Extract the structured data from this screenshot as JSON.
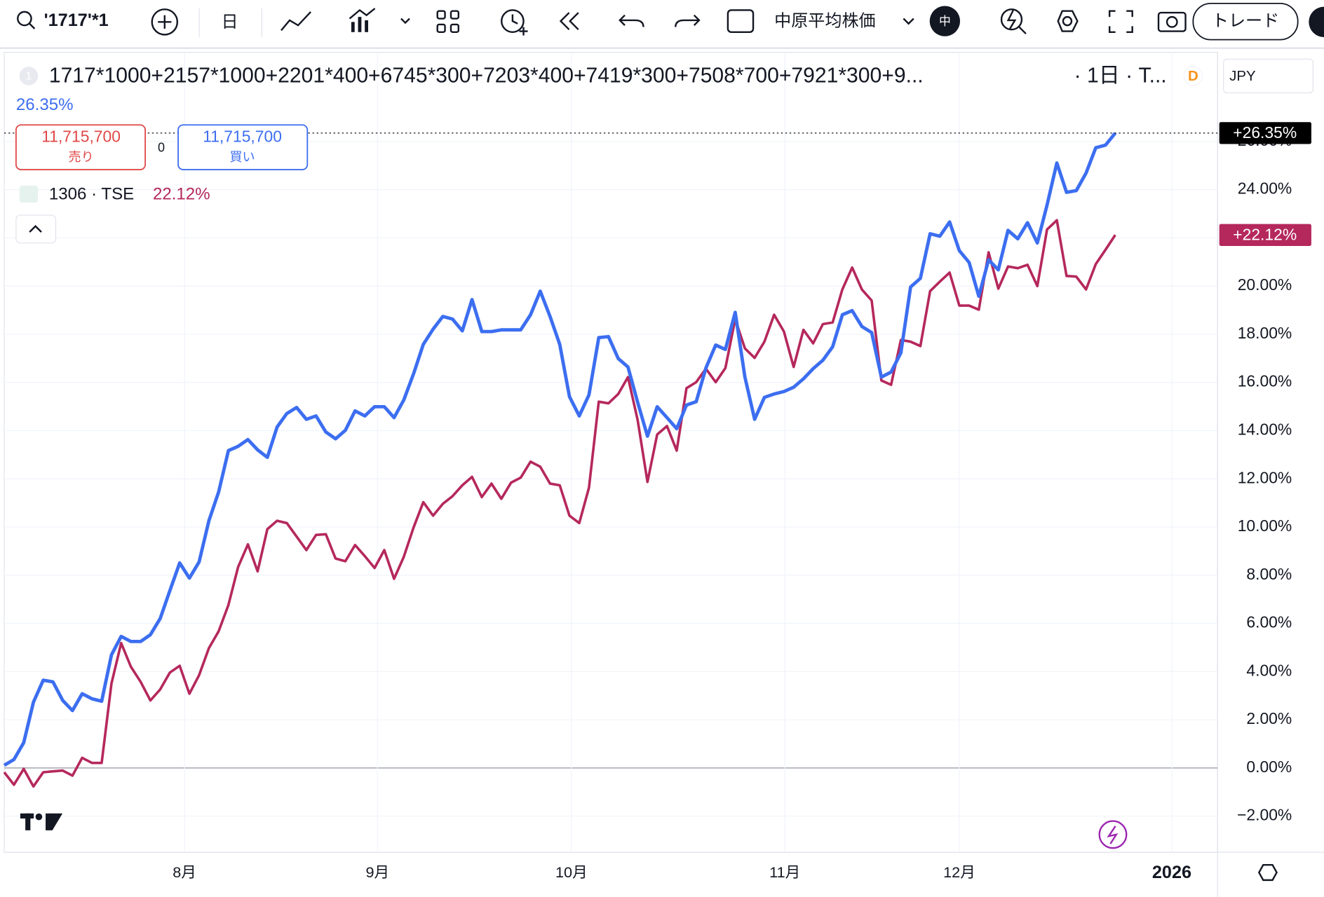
{
  "toolbar": {
    "symbol": "'1717'*1",
    "interval": "日",
    "compare": "中原平均株価",
    "badge": "中",
    "trade": "トレード"
  },
  "order_panel": {
    "sell_price": "11,715,700",
    "sell": "売り",
    "spread": "0",
    "buy_price": "11,715,700",
    "buy": "買い"
  },
  "legend_index": "1",
  "title_suffix": "· 1日 · T...",
  "source_icon": "D",
  "currency": "JPY",
  "chart_data": {
    "type": "line",
    "xlim": [
      0,
      124.5
    ],
    "xticks": [
      {
        "value": 18.5,
        "label": "8月"
      },
      {
        "value": 38.3,
        "label": "9月"
      },
      {
        "value": 58.2,
        "label": "10月"
      },
      {
        "value": 80.1,
        "label": "11月"
      },
      {
        "value": 98.0,
        "label": "12月"
      },
      {
        "value": 119.8,
        "label": "2026"
      }
    ],
    "ylim": [
      -3.5,
      29.7
    ],
    "yticks": [
      {
        "value": -2,
        "label": "−2.00%"
      },
      {
        "value": 0,
        "label": "0.00%"
      },
      {
        "value": 2,
        "label": "2.00%"
      },
      {
        "value": 4,
        "label": "4.00%"
      },
      {
        "value": 6,
        "label": "6.00%"
      },
      {
        "value": 8,
        "label": "8.00%"
      },
      {
        "value": 10,
        "label": "10.00%"
      },
      {
        "value": 12,
        "label": "12.00%"
      },
      {
        "value": 14,
        "label": "14.00%"
      },
      {
        "value": 16,
        "label": "16.00%"
      },
      {
        "value": 18,
        "label": "18.00%"
      },
      {
        "value": 20,
        "label": "20.00%"
      },
      {
        "value": 22,
        "label": "22.00%"
      },
      {
        "value": 24,
        "label": "24.00%"
      },
      {
        "value": 26,
        "label": "26.00%"
      }
    ],
    "grid": true,
    "series": [
      {
        "name": "1717*1000+2157*1000+2201*400+6745*300+7203*400+7419*300+7508*700+7921*300+9...",
        "color": "#3c6ef0",
        "legend_label": "26.35%",
        "price_label": "+26.35%",
        "values": [
          0.11,
          0.35,
          1.05,
          2.73,
          3.64,
          3.57,
          2.8,
          2.38,
          3.08,
          2.87,
          2.77,
          4.69,
          5.46,
          5.25,
          5.25,
          5.53,
          6.2,
          7.36,
          8.51,
          7.88,
          8.55,
          10.26,
          11.45,
          13.17,
          13.35,
          13.63,
          13.2,
          12.89,
          14.15,
          14.71,
          14.96,
          14.47,
          14.61,
          13.94,
          13.66,
          14.01,
          14.82,
          14.61,
          14.99,
          14.99,
          14.54,
          15.27,
          16.36,
          17.58,
          18.21,
          18.74,
          18.63,
          18.14,
          19.44,
          18.11,
          18.11,
          18.18,
          18.18,
          18.18,
          18.81,
          19.79,
          18.74,
          17.58,
          15.41,
          14.61,
          15.48,
          17.86,
          17.9,
          16.99,
          16.64,
          15.17,
          13.77,
          14.99,
          14.54,
          14.08,
          15.06,
          15.2,
          16.6,
          17.55,
          17.37,
          18.91,
          16.22,
          14.47,
          15.38,
          15.52,
          15.62,
          15.8,
          16.15,
          16.57,
          16.92,
          17.48,
          18.81,
          18.98,
          18.32,
          18.07,
          16.22,
          16.43,
          17.23,
          19.96,
          20.32,
          22.17,
          22.07,
          22.66,
          21.47,
          20.98,
          19.58,
          21.09,
          20.67,
          22.31,
          21.96,
          22.63,
          21.79,
          23.36,
          25.11,
          23.89,
          23.96,
          24.69,
          25.74,
          25.85,
          26.35
        ]
      },
      {
        "name": "1306 · TSE",
        "color": "#b5285c",
        "legend_label": "22.12%",
        "price_label": "+22.12%",
        "values": [
          -0.18,
          -0.7,
          -0.04,
          -0.77,
          -0.18,
          -0.14,
          -0.11,
          -0.32,
          0.42,
          0.21,
          0.21,
          3.5,
          5.18,
          4.2,
          3.57,
          2.8,
          3.26,
          3.96,
          4.24,
          3.08,
          3.85,
          4.97,
          5.67,
          6.76,
          8.34,
          9.28,
          8.16,
          9.91,
          10.26,
          10.16,
          9.6,
          9.04,
          9.67,
          9.7,
          8.69,
          8.58,
          9.25,
          8.79,
          8.3,
          9.04,
          7.85,
          8.76,
          9.98,
          11.03,
          10.47,
          10.96,
          11.28,
          11.73,
          12.08,
          11.24,
          11.8,
          11.17,
          11.84,
          12.05,
          12.71,
          12.5,
          11.8,
          11.73,
          10.47,
          10.16,
          11.63,
          15.2,
          15.13,
          15.52,
          16.22,
          14.43,
          11.87,
          13.84,
          14.19,
          13.17,
          15.76,
          16.01,
          16.57,
          16.01,
          16.6,
          18.63,
          17.41,
          17.02,
          17.69,
          18.81,
          18.11,
          16.64,
          18.18,
          17.62,
          18.42,
          18.49,
          19.86,
          20.77,
          19.86,
          19.4,
          16.08,
          15.9,
          17.76,
          17.69,
          17.51,
          19.79,
          20.18,
          20.56,
          19.19,
          19.19,
          19.02,
          21.4,
          19.89,
          20.81,
          20.74,
          20.88,
          20.0,
          22.35,
          22.73,
          20.42,
          20.39,
          19.86,
          20.91,
          21.51,
          22.12
        ]
      }
    ]
  }
}
